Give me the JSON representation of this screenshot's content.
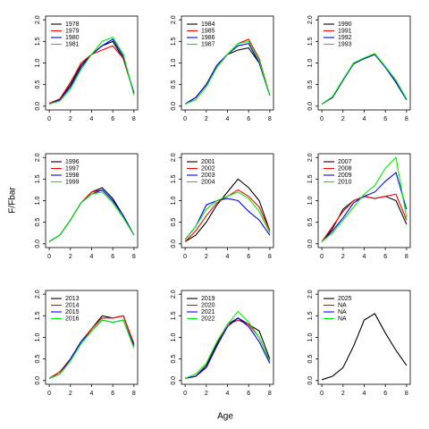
{
  "ylabel": "F/Fbar",
  "xlabel": "Age",
  "chart_data": [
    {
      "type": "line",
      "x": [
        0,
        1,
        2,
        3,
        4,
        5,
        6,
        7,
        8
      ],
      "xlim": [
        0,
        8
      ],
      "xticks": [
        0,
        2,
        4,
        6,
        8
      ],
      "ylim": [
        0,
        2
      ],
      "yticks": [
        {
          "value": 0,
          "label": "0.0"
        },
        0.5,
        {
          "value": 1,
          "label": "1.0"
        },
        1.5,
        {
          "value": 2,
          "label": "2.0"
        }
      ],
      "series": [
        {
          "name": "1978",
          "color": "#000000",
          "values": [
            0.05,
            0.15,
            0.5,
            0.95,
            1.2,
            1.4,
            1.5,
            1.1,
            0.3
          ]
        },
        {
          "name": "1979",
          "color": "#ff0000",
          "values": [
            0.07,
            0.17,
            0.55,
            1.0,
            1.2,
            1.3,
            1.4,
            1.1,
            0.3
          ]
        },
        {
          "name": "1980",
          "color": "#0000ff",
          "values": [
            0.05,
            0.15,
            0.45,
            0.9,
            1.2,
            1.4,
            1.55,
            1.15,
            0.3
          ]
        },
        {
          "name": "1981",
          "color": "#00ee00",
          "values": [
            0.05,
            0.12,
            0.4,
            0.85,
            1.2,
            1.5,
            1.6,
            1.2,
            0.25
          ]
        }
      ]
    },
    {
      "type": "line",
      "x": [
        0,
        1,
        2,
        3,
        4,
        5,
        6,
        7,
        8
      ],
      "xlim": [
        0,
        8
      ],
      "xticks": [
        0,
        2,
        4,
        6,
        8
      ],
      "ylim": [
        0,
        2
      ],
      "yticks": [
        {
          "value": 0,
          "label": "0.0"
        },
        0.5,
        {
          "value": 1,
          "label": "1.0"
        },
        1.5,
        {
          "value": 2,
          "label": "2.0"
        }
      ],
      "series": [
        {
          "name": "1984",
          "color": "#000000",
          "values": [
            0.05,
            0.2,
            0.5,
            0.9,
            1.2,
            1.3,
            1.35,
            1.0,
            0.25
          ]
        },
        {
          "name": "1985",
          "color": "#ff0000",
          "values": [
            0.05,
            0.2,
            0.5,
            0.95,
            1.2,
            1.45,
            1.55,
            1.1,
            0.25
          ]
        },
        {
          "name": "1986",
          "color": "#0000ff",
          "values": [
            0.05,
            0.2,
            0.5,
            0.95,
            1.2,
            1.4,
            1.45,
            1.0,
            0.25
          ]
        },
        {
          "name": "1987",
          "color": "#00ee00",
          "values": [
            0.05,
            0.15,
            0.45,
            0.9,
            1.2,
            1.45,
            1.5,
            1.05,
            0.25
          ]
        }
      ]
    },
    {
      "type": "line",
      "x": [
        0,
        1,
        2,
        3,
        4,
        5,
        6,
        7,
        8
      ],
      "xlim": [
        0,
        8
      ],
      "xticks": [
        0,
        2,
        4,
        6,
        8
      ],
      "ylim": [
        0,
        2
      ],
      "yticks": [
        {
          "value": 0,
          "label": "0.0"
        },
        0.5,
        {
          "value": 1,
          "label": "1.0"
        },
        1.5,
        {
          "value": 2,
          "label": "2.0"
        }
      ],
      "series": [
        {
          "name": "1990",
          "color": "#000000",
          "values": [
            0.05,
            0.2,
            0.6,
            1.0,
            1.1,
            1.2,
            0.9,
            0.55,
            0.15
          ]
        },
        {
          "name": "1991",
          "color": "#ff0000",
          "values": [
            0.05,
            0.2,
            0.6,
            1.0,
            1.1,
            1.2,
            0.9,
            0.6,
            0.15
          ]
        },
        {
          "name": "1992",
          "color": "#0000ff",
          "values": [
            0.05,
            0.2,
            0.6,
            0.98,
            1.1,
            1.2,
            0.9,
            0.55,
            0.15
          ]
        },
        {
          "name": "1993",
          "color": "#00ee00",
          "values": [
            0.05,
            0.22,
            0.62,
            1.0,
            1.12,
            1.22,
            0.92,
            0.6,
            0.17
          ]
        }
      ]
    },
    {
      "type": "line",
      "x": [
        0,
        1,
        2,
        3,
        4,
        5,
        6,
        7,
        8
      ],
      "xlim": [
        0,
        8
      ],
      "xticks": [
        0,
        2,
        4,
        6,
        8
      ],
      "ylim": [
        0,
        2
      ],
      "yticks": [
        {
          "value": 0,
          "label": "0.0"
        },
        0.5,
        {
          "value": 1,
          "label": "1.0"
        },
        1.5,
        {
          "value": 2,
          "label": "2.0"
        }
      ],
      "series": [
        {
          "name": "1996",
          "color": "#000000",
          "values": [
            0.05,
            0.2,
            0.55,
            0.95,
            1.2,
            1.3,
            1.05,
            0.65,
            0.2
          ]
        },
        {
          "name": "1997",
          "color": "#ff0000",
          "values": [
            0.05,
            0.2,
            0.55,
            0.95,
            1.2,
            1.25,
            1.0,
            0.65,
            0.2
          ]
        },
        {
          "name": "1998",
          "color": "#0000ff",
          "values": [
            0.05,
            0.2,
            0.55,
            0.95,
            1.15,
            1.25,
            1.0,
            0.65,
            0.2
          ]
        },
        {
          "name": "1999",
          "color": "#00ee00",
          "values": [
            0.05,
            0.2,
            0.55,
            0.95,
            1.15,
            1.2,
            0.95,
            0.6,
            0.2
          ]
        }
      ]
    },
    {
      "type": "line",
      "x": [
        0,
        1,
        2,
        3,
        4,
        5,
        6,
        7,
        8
      ],
      "xlim": [
        0,
        8
      ],
      "xticks": [
        0,
        2,
        4,
        6,
        8
      ],
      "ylim": [
        0,
        2
      ],
      "yticks": [
        {
          "value": 0,
          "label": "0.0"
        },
        0.5,
        {
          "value": 1,
          "label": "1.0"
        },
        1.5,
        {
          "value": 2,
          "label": "2.0"
        }
      ],
      "series": [
        {
          "name": "2001",
          "color": "#000000",
          "values": [
            0.05,
            0.2,
            0.5,
            0.9,
            1.2,
            1.5,
            1.3,
            1.0,
            0.3
          ]
        },
        {
          "name": "2002",
          "color": "#ff0000",
          "values": [
            0.05,
            0.3,
            0.65,
            0.95,
            1.1,
            1.25,
            1.1,
            0.85,
            0.3
          ]
        },
        {
          "name": "2003",
          "color": "#0000ff",
          "values": [
            0.1,
            0.4,
            0.9,
            1.0,
            1.05,
            1.0,
            0.75,
            0.55,
            0.2
          ]
        },
        {
          "name": "2004",
          "color": "#00ee00",
          "values": [
            0.1,
            0.4,
            0.8,
            1.0,
            1.1,
            1.2,
            1.05,
            0.75,
            0.25
          ]
        }
      ]
    },
    {
      "type": "line",
      "x": [
        0,
        1,
        2,
        3,
        4,
        5,
        6,
        7,
        8
      ],
      "xlim": [
        0,
        8
      ],
      "xticks": [
        0,
        2,
        4,
        6,
        8
      ],
      "ylim": [
        0,
        2
      ],
      "yticks": [
        {
          "value": 0,
          "label": "0.0"
        },
        0.5,
        {
          "value": 1,
          "label": "1.0"
        },
        1.5,
        {
          "value": 2,
          "label": "2.0"
        }
      ],
      "series": [
        {
          "name": "2007",
          "color": "#000000",
          "values": [
            0.05,
            0.35,
            0.8,
            1.0,
            1.1,
            1.05,
            1.1,
            1.0,
            0.45
          ]
        },
        {
          "name": "2008",
          "color": "#ff0000",
          "values": [
            0.05,
            0.4,
            0.75,
            1.0,
            1.1,
            1.05,
            1.1,
            1.15,
            0.55
          ]
        },
        {
          "name": "2009",
          "color": "#0000ff",
          "values": [
            0.05,
            0.3,
            0.6,
            0.95,
            1.1,
            1.2,
            1.45,
            1.65,
            0.8
          ]
        },
        {
          "name": "2010",
          "color": "#00ee00",
          "values": [
            0.05,
            0.25,
            0.55,
            0.85,
            1.15,
            1.35,
            1.75,
            2.0,
            0.6
          ]
        }
      ]
    },
    {
      "type": "line",
      "x": [
        0,
        1,
        2,
        3,
        4,
        5,
        6,
        7,
        8
      ],
      "xlim": [
        0,
        8
      ],
      "xticks": [
        0,
        2,
        4,
        6,
        8
      ],
      "ylim": [
        0,
        2
      ],
      "yticks": [
        {
          "value": 0,
          "label": "0.0"
        },
        0.5,
        {
          "value": 1,
          "label": "1.0"
        },
        1.5,
        {
          "value": 2,
          "label": "2.0"
        }
      ],
      "series": [
        {
          "name": "2013",
          "color": "#000000",
          "values": [
            0.05,
            0.2,
            0.5,
            0.9,
            1.2,
            1.5,
            1.45,
            1.5,
            0.85
          ]
        },
        {
          "name": "2014",
          "color": "#ff0000",
          "values": [
            0.05,
            0.2,
            0.5,
            0.9,
            1.2,
            1.45,
            1.45,
            1.5,
            0.85
          ]
        },
        {
          "name": "2015",
          "color": "#0000ff",
          "values": [
            0.05,
            0.15,
            0.5,
            0.9,
            1.15,
            1.4,
            1.35,
            1.4,
            0.8
          ]
        },
        {
          "name": "2016",
          "color": "#00ee00",
          "values": [
            0.05,
            0.15,
            0.45,
            0.85,
            1.15,
            1.4,
            1.35,
            1.4,
            0.75
          ]
        }
      ]
    },
    {
      "type": "line",
      "x": [
        0,
        1,
        2,
        3,
        4,
        5,
        6,
        7,
        8
      ],
      "xlim": [
        0,
        8
      ],
      "xticks": [
        0,
        2,
        4,
        6,
        8
      ],
      "ylim": [
        0,
        2
      ],
      "yticks": [
        {
          "value": 0,
          "label": "0.0"
        },
        0.5,
        {
          "value": 1,
          "label": "1.0"
        },
        1.5,
        {
          "value": 2,
          "label": "2.0"
        }
      ],
      "series": [
        {
          "name": "2019",
          "color": "#000000",
          "values": [
            0.05,
            0.1,
            0.35,
            0.85,
            1.3,
            1.45,
            1.3,
            1.15,
            0.5
          ]
        },
        {
          "name": "2020",
          "color": "#ff0000",
          "values": [
            0.05,
            0.1,
            0.3,
            0.8,
            1.3,
            1.4,
            1.3,
            1.0,
            0.45
          ]
        },
        {
          "name": "2021",
          "color": "#0000ff",
          "values": [
            0.05,
            0.1,
            0.3,
            0.8,
            1.25,
            1.45,
            1.25,
            0.9,
            0.4
          ]
        },
        {
          "name": "2022",
          "color": "#00ee00",
          "values": [
            0.05,
            0.15,
            0.4,
            0.9,
            1.3,
            1.6,
            1.35,
            1.0,
            0.45
          ]
        }
      ]
    },
    {
      "type": "line",
      "x": [
        0,
        1,
        2,
        3,
        4,
        5,
        6,
        7,
        8
      ],
      "xlim": [
        0,
        8
      ],
      "xticks": [
        0,
        2,
        4,
        6,
        8
      ],
      "ylim": [
        0,
        2
      ],
      "yticks": [
        {
          "value": 0,
          "label": "0.0"
        },
        0.5,
        {
          "value": 1,
          "label": "1.0"
        },
        1.5,
        {
          "value": 2,
          "label": "2.0"
        }
      ],
      "series": [
        {
          "name": "2025",
          "color": "#000000",
          "values": [
            0.02,
            0.1,
            0.3,
            0.8,
            1.4,
            1.55,
            1.1,
            0.7,
            0.35
          ]
        },
        {
          "name": "NA",
          "color": "#ff0000",
          "values": [
            null,
            null,
            null,
            null,
            null,
            null,
            null,
            null,
            null
          ]
        },
        {
          "name": "NA",
          "color": "#0000ff",
          "values": [
            null,
            null,
            null,
            null,
            null,
            null,
            null,
            null,
            null
          ]
        },
        {
          "name": "NA",
          "color": "#00ee00",
          "values": [
            null,
            null,
            null,
            null,
            null,
            null,
            null,
            null,
            null
          ]
        }
      ]
    }
  ]
}
